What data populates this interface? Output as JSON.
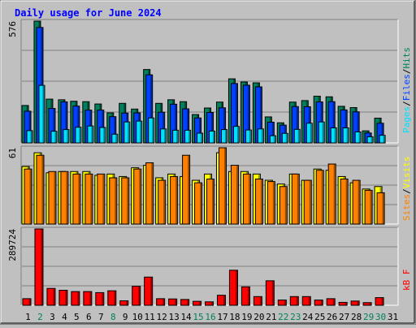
{
  "chart_data": {
    "type": "bar",
    "title": "Daily usage for June 2024",
    "days": [
      "1",
      "2",
      "3",
      "4",
      "5",
      "6",
      "7",
      "8",
      "9",
      "10",
      "11",
      "12",
      "13",
      "14",
      "15",
      "16",
      "17",
      "18",
      "19",
      "20",
      "21",
      "22",
      "23",
      "24",
      "25",
      "26",
      "27",
      "28",
      "29",
      "30",
      "31"
    ],
    "weekend_days": [
      "2",
      "8",
      "15",
      "16",
      "22",
      "23",
      "29",
      "30"
    ],
    "panels": [
      {
        "id": "requests",
        "max_label": "576",
        "ymax": 576,
        "series": [
          {
            "name": "Hits",
            "color": "#00805c",
            "values": [
              177,
              576,
              207,
              204,
              197,
              195,
              184,
              142,
              187,
              160,
              347,
              187,
              204,
              195,
              134,
              165,
              193,
              303,
              288,
              284,
              123,
              95,
              193,
              200,
              221,
              218,
              173,
              167,
              57,
              117,
              null
            ]
          },
          {
            "name": "Files",
            "color": "#0040ff",
            "values": [
              150,
              546,
              163,
              194,
              174,
              155,
              155,
              124,
              141,
              142,
              322,
              145,
              183,
              161,
              118,
              144,
              166,
              281,
              273,
              265,
              98,
              84,
              172,
              171,
              194,
              195,
              156,
              147,
              47,
              93,
              null
            ]
          },
          {
            "name": "Pages",
            "color": "#00e0ff",
            "values": [
              58,
              272,
              55,
              63,
              74,
              80,
              73,
              41,
              99,
              103,
              118,
              66,
              60,
              60,
              46,
              56,
              63,
              78,
              61,
              66,
              34,
              45,
              64,
              93,
              99,
              71,
              71,
              52,
              29,
              36,
              null
            ]
          }
        ]
      },
      {
        "id": "visitors",
        "max_label": "61",
        "ymax": 61,
        "series": [
          {
            "name": "Visits",
            "color": "#ffff00",
            "values": [
              46,
              57,
              41,
              42,
              42,
              42,
              39,
              40,
              38,
              45,
              47,
              37,
              40,
              38,
              35,
              40,
              57,
              42,
              42,
              40,
              35,
              32,
              40,
              35,
              44,
              43,
              38,
              33,
              28,
              30,
              null
            ]
          },
          {
            "name": "Sites",
            "color": "#ff8000",
            "values": [
              44,
              55,
              42,
              42,
              40,
              40,
              40,
              37,
              37,
              44,
              49,
              35,
              38,
              55,
              33,
              36,
              61,
              47,
              40,
              36,
              34,
              30,
              40,
              35,
              43,
              48,
              36,
              35,
              27,
              25,
              null
            ]
          }
        ]
      },
      {
        "id": "kbytes",
        "max_label": "289724",
        "ymax": 289724,
        "series": [
          {
            "name": "kB F",
            "color": "#ff0000",
            "values": [
              25000,
              289724,
              64000,
              57000,
              52000,
              52000,
              48000,
              55000,
              17000,
              72000,
              107000,
              25000,
              24000,
              22000,
              15000,
              13000,
              38000,
              133000,
              70000,
              33000,
              93000,
              20000,
              33000,
              33000,
              20000,
              25000,
              11000,
              16000,
              10000,
              29000,
              null
            ]
          }
        ]
      }
    ]
  },
  "colors": {
    "background": "#c0c0c0",
    "plot_background": "#c0c0c0",
    "gridline": "#808080",
    "title": "#0000ff",
    "weekday_label": "#000000",
    "weekend_label": "#00805c"
  },
  "legends": {
    "requests": [
      {
        "text": "Pages",
        "color": "#00e0ff"
      },
      {
        "text": "/",
        "color": "#000000"
      },
      {
        "text": "Files",
        "color": "#0040ff"
      },
      {
        "text": "/",
        "color": "#000000"
      },
      {
        "text": "Hits",
        "color": "#00805c"
      }
    ],
    "visitors": [
      {
        "text": "Sites",
        "color": "#ff8000"
      },
      {
        "text": "/",
        "color": "#000000"
      },
      {
        "text": "Visits",
        "color": "#ffff00"
      }
    ],
    "kbytes": [
      {
        "text": "kB F",
        "color": "#ff0000"
      }
    ]
  }
}
